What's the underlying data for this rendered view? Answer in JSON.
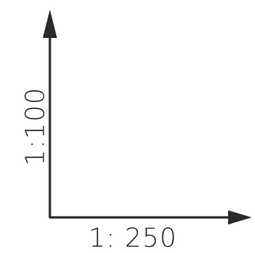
{
  "diagram": {
    "vertical_axis_label": "1:100",
    "horizontal_axis_label": "1: 250",
    "line_color": "#2a2a2a"
  }
}
